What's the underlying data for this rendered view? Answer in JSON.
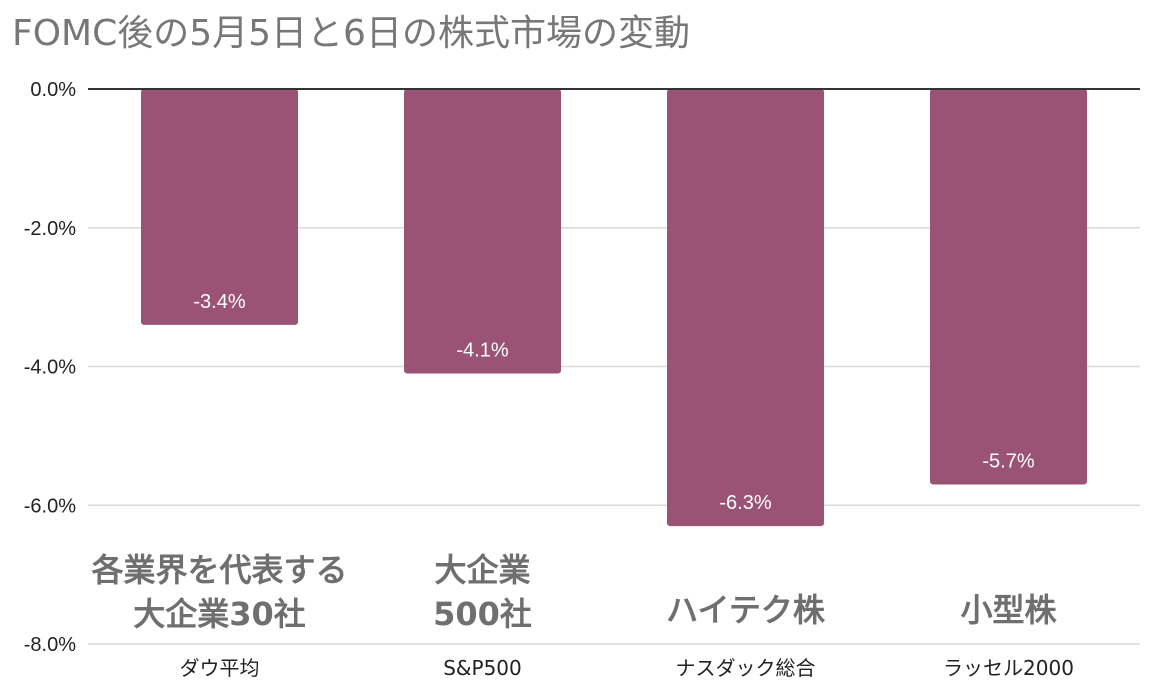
{
  "chart_data": {
    "type": "bar",
    "title": "FOMC後の5月5日と6日の株式市場の変動",
    "categories": [
      "ダウ平均",
      "S&P500",
      "ナスダック総合",
      "ラッセル2000"
    ],
    "values": [
      -3.4,
      -4.1,
      -6.3,
      -5.7
    ],
    "data_labels": [
      "-3.4%",
      "-4.1%",
      "-6.3%",
      "-5.7%"
    ],
    "annotations": [
      "各業界を代表する\n大企業30社",
      "大企業\n500社",
      "ハイテク株",
      "小型株"
    ],
    "y_ticks": [
      0,
      -2,
      -4,
      -6,
      -8
    ],
    "y_tick_labels": [
      "0.0%",
      "-2.0%",
      "-4.0%",
      "-6.0%",
      "-8.0%"
    ],
    "ylim": [
      -8,
      0
    ],
    "xlabel": "",
    "ylabel": "",
    "grid": true,
    "colors": {
      "bar": "#9a5374",
      "grid": "#d9d9d9",
      "zero_line": "#333333",
      "title": "#777777",
      "annotation": "#6f6f6f"
    }
  }
}
